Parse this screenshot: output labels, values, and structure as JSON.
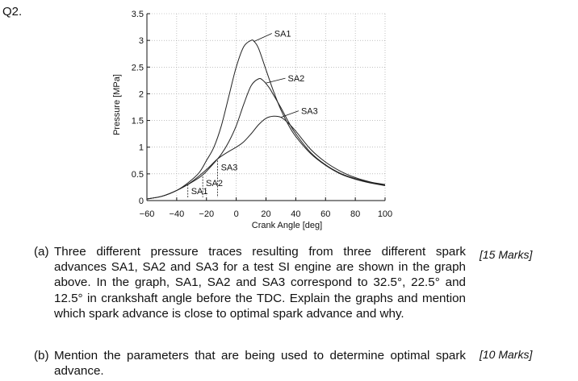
{
  "question": {
    "number": "Q2.",
    "parts": [
      {
        "label": "(a)",
        "text": "Three different pressure traces resulting from three different spark advances SA1, SA2 and SA3 for a test SI engine are shown in the graph above. In the graph, SA1, SA2 and SA3 correspond to 32.5°, 22.5° and 12.5° in crankshaft angle before the TDC. Explain the graphs and mention which spark advance is close to optimal spark advance and why.",
        "marks": "[15 Marks]"
      },
      {
        "label": "(b)",
        "text": "Mention the parameters that are being used to determine optimal spark advance.",
        "marks": "[10 Marks]"
      }
    ]
  },
  "chart_data": {
    "type": "line",
    "xlabel": "Crank Angle [deg]",
    "ylabel": "Pressure [MPa]",
    "xlim": [
      -60,
      100
    ],
    "ylim": [
      0,
      3.5
    ],
    "x_ticks": [
      "-60",
      "-40",
      "-20",
      "0",
      "20",
      "40",
      "60",
      "80",
      "100"
    ],
    "y_ticks": [
      "0",
      "0.5",
      "1",
      "1.5",
      "2",
      "2.5",
      "3",
      "3.5"
    ],
    "grid": true,
    "series": [
      {
        "name": "SA1",
        "x": [
          -60,
          -50,
          -40,
          -32.5,
          -25,
          -20,
          -15,
          -10,
          -5,
          0,
          5,
          10,
          12,
          15,
          20,
          25,
          30,
          35,
          40,
          50,
          60,
          70,
          80,
          90,
          100
        ],
        "y": [
          0.03,
          0.08,
          0.19,
          0.33,
          0.52,
          0.75,
          1.0,
          1.4,
          1.95,
          2.5,
          2.88,
          3.0,
          2.98,
          2.85,
          2.45,
          2.05,
          1.7,
          1.42,
          1.2,
          0.88,
          0.66,
          0.5,
          0.4,
          0.33,
          0.28
        ]
      },
      {
        "name": "SA2",
        "x": [
          -60,
          -50,
          -40,
          -30,
          -22.5,
          -15,
          -10,
          -5,
          0,
          5,
          10,
          15,
          18,
          22,
          25,
          30,
          35,
          40,
          50,
          60,
          70,
          80,
          90,
          100
        ],
        "y": [
          0.03,
          0.08,
          0.19,
          0.34,
          0.48,
          0.7,
          0.87,
          1.1,
          1.4,
          1.8,
          2.15,
          2.28,
          2.25,
          2.12,
          1.98,
          1.74,
          1.48,
          1.25,
          0.9,
          0.67,
          0.51,
          0.41,
          0.34,
          0.29
        ]
      },
      {
        "name": "SA3",
        "x": [
          -60,
          -50,
          -40,
          -30,
          -20,
          -12.5,
          -5,
          0,
          5,
          10,
          15,
          20,
          25,
          30,
          35,
          40,
          50,
          60,
          70,
          80,
          90,
          100
        ],
        "y": [
          0.03,
          0.08,
          0.19,
          0.35,
          0.58,
          0.78,
          0.92,
          1.0,
          1.1,
          1.25,
          1.42,
          1.54,
          1.58,
          1.56,
          1.45,
          1.3,
          0.96,
          0.72,
          0.55,
          0.43,
          0.35,
          0.3
        ]
      }
    ],
    "annotations": [
      {
        "text": "SA1",
        "points_at": {
          "x": 12,
          "y": 2.98
        }
      },
      {
        "text": "SA2",
        "points_at": {
          "x": 20,
          "y": 2.2
        }
      },
      {
        "text": "SA3",
        "points_at": {
          "x": 30,
          "y": 1.56
        }
      },
      {
        "text": "SA1",
        "marks_spark_at": {
          "x": -32.5,
          "y": 0.33
        }
      },
      {
        "text": "SA2",
        "marks_spark_at": {
          "x": -22.5,
          "y": 0.48
        }
      },
      {
        "text": "SA3",
        "marks_spark_at": {
          "x": -12.5,
          "y": 0.78
        }
      }
    ]
  }
}
